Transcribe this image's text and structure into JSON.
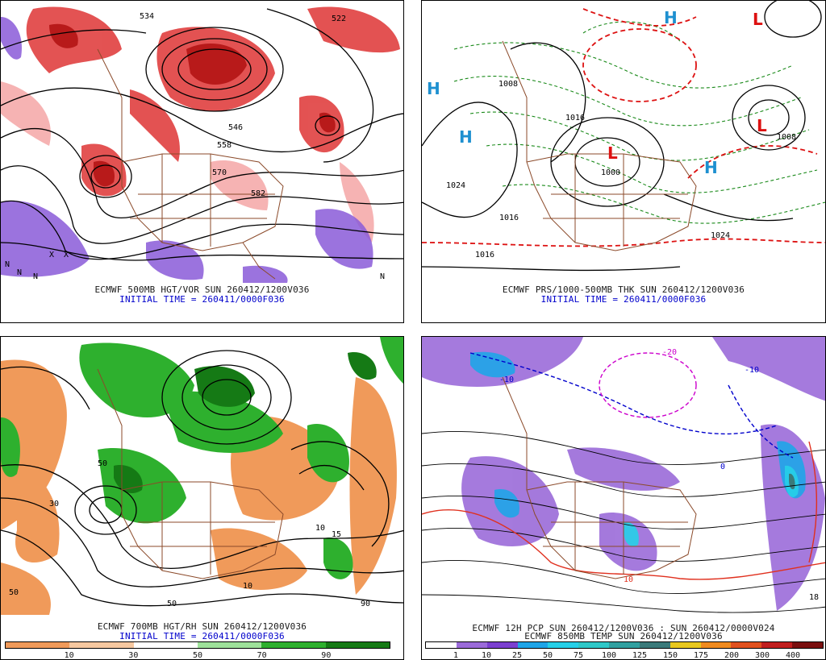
{
  "panels": [
    {
      "id": "p1",
      "caption_line1": "ECMWF 500MB HGT/VOR SUN 260412/1200V036",
      "caption_line2": "INITIAL TIME = 260411/0000F036",
      "contour_labels": [
        "534",
        "522",
        "546",
        "558",
        "570",
        "582"
      ],
      "markers": [
        "N",
        "X"
      ]
    },
    {
      "id": "p2",
      "caption_line1": "ECMWF PRS/1000-500MB THK SUN 260412/1200V036",
      "caption_line2": "INITIAL TIME = 260411/0000F036",
      "contour_labels": [
        "1008",
        "1016",
        "1024",
        "1000",
        "1016",
        "1024",
        "1016",
        "1008"
      ],
      "markers": [
        "H",
        "L"
      ]
    },
    {
      "id": "p3",
      "caption_line1": "ECMWF 700MB HGT/RH SUN 260412/1200V036",
      "caption_line2": "INITIAL TIME = 260411/0000F036",
      "contour_labels": [
        "50",
        "10",
        "50",
        "30",
        "50",
        "10",
        "15",
        "90"
      ],
      "colorbar": {
        "colors": [
          "#f09a5a",
          "#f6c8a0",
          "#ffffff",
          "#9ee29a",
          "#2eb02e",
          "#157a15"
        ],
        "ticks": [
          "10",
          "30",
          "50",
          "70",
          "90"
        ]
      }
    },
    {
      "id": "p4",
      "caption_line1": "ECMWF 12H PCP SUN 260412/1200V036 : SUN 260412/0000V024",
      "caption_line2": "ECMWF 850MB TEMP SUN 260412/1200V036",
      "contour_labels": [
        "-20",
        "-10",
        "0",
        "10",
        "-10",
        "18"
      ],
      "colorbar": {
        "colors": [
          "#ffffff",
          "#9b6bd9",
          "#7b3fd0",
          "#1fa5e8",
          "#26d0e8",
          "#2ec8c8",
          "#31a0a0",
          "#3a7a7a",
          "#e8c81e",
          "#f08a1e",
          "#e0501e",
          "#c01e1e",
          "#7a0f0f"
        ],
        "ticks": [
          "1",
          "10",
          "25",
          "50",
          "75",
          "100",
          "125",
          "150",
          "175",
          "200",
          "300",
          "400"
        ]
      }
    }
  ],
  "colors": {
    "vorticity_red": "#d42020",
    "vorticity_pink": "#f07070",
    "neg_vort_purple": "#8a5ad8",
    "contour_black": "#000000",
    "thickness_red_dashed": "#dd1111",
    "thickness_green_dashed": "#1a8a1a",
    "borders_brown": "#8b4a2a",
    "high_blue": "#1e90d0",
    "low_red": "#dd1111"
  }
}
